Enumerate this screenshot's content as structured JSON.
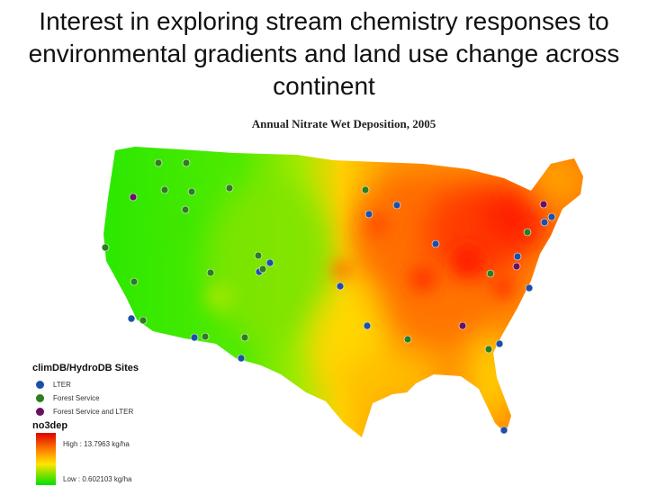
{
  "slide": {
    "title": "Interest in exploring stream chemistry responses to environmental gradients and land use change across continent"
  },
  "map": {
    "title": "Annual Nitrate Wet Deposition, 2005",
    "colors": {
      "high": "#e00000",
      "mid_high": "#ff8a00",
      "mid": "#ffe600",
      "low": "#00e000"
    },
    "site_types": [
      {
        "key": "lter",
        "color": "#1e4fa8"
      },
      {
        "key": "forest",
        "color": "#2e7d1f"
      },
      {
        "key": "both",
        "color": "#6a1060"
      }
    ]
  },
  "legend": {
    "sites_heading": "climDB/HydroDB Sites",
    "items": [
      {
        "label": "LTER",
        "color": "#1e4fa8"
      },
      {
        "label": "Forest Service",
        "color": "#2e7d1f"
      },
      {
        "label": "Forest Service and LTER",
        "color": "#6a1060"
      }
    ],
    "ramp_heading": "no3dep",
    "high_label": "High : 13.7963 kg/ha",
    "low_label": "Low : 0.602103 kg/ha"
  }
}
